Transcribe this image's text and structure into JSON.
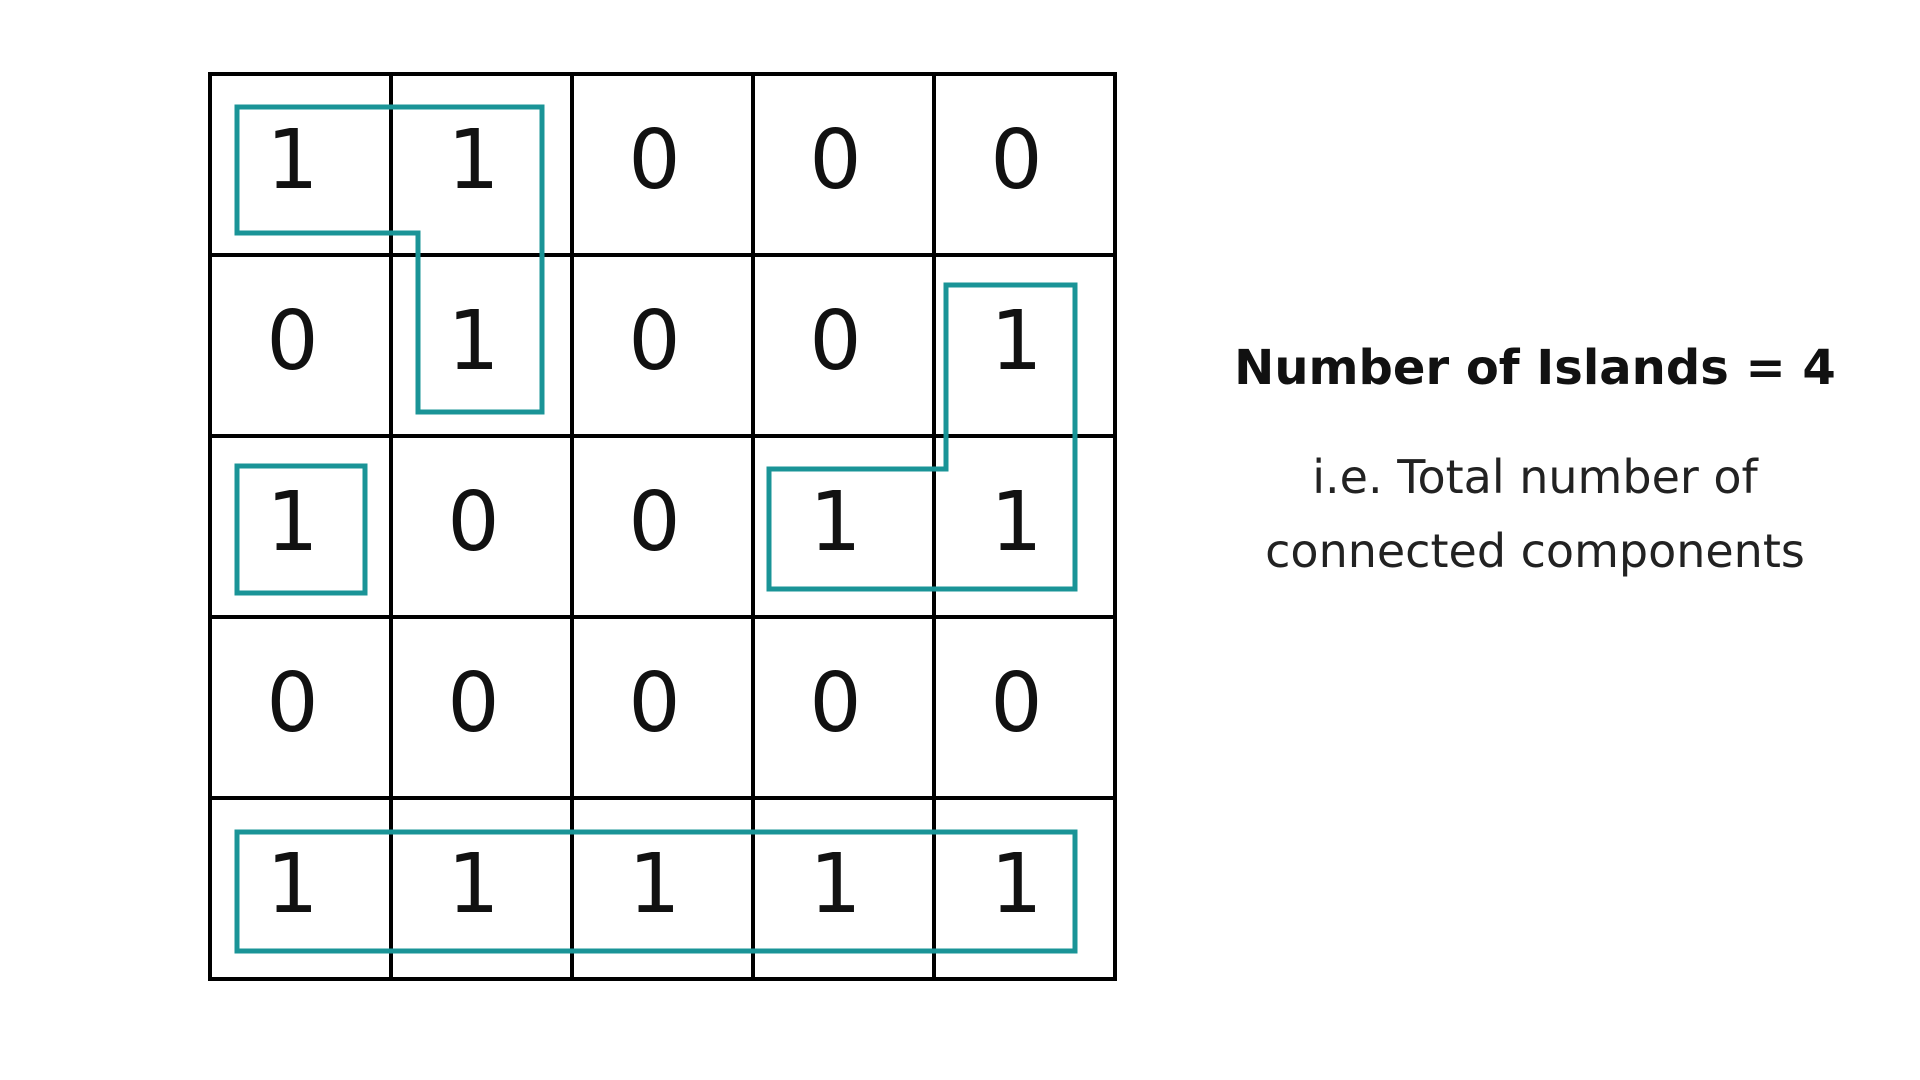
{
  "grid": {
    "rows": [
      [
        "1",
        "1",
        "0",
        "0",
        "0"
      ],
      [
        "0",
        "1",
        "0",
        "0",
        "1"
      ],
      [
        "1",
        "0",
        "0",
        "1",
        "1"
      ],
      [
        "0",
        "0",
        "0",
        "0",
        "0"
      ],
      [
        "1",
        "1",
        "1",
        "1",
        "1"
      ]
    ]
  },
  "colors": {
    "grid_line": "#000000",
    "island_outline": "#1a9497",
    "text": "#111111"
  },
  "caption": {
    "title": "Number of Islands = 4",
    "subtitle_line1": "i.e. Total number of",
    "subtitle_line2": "connected components"
  }
}
